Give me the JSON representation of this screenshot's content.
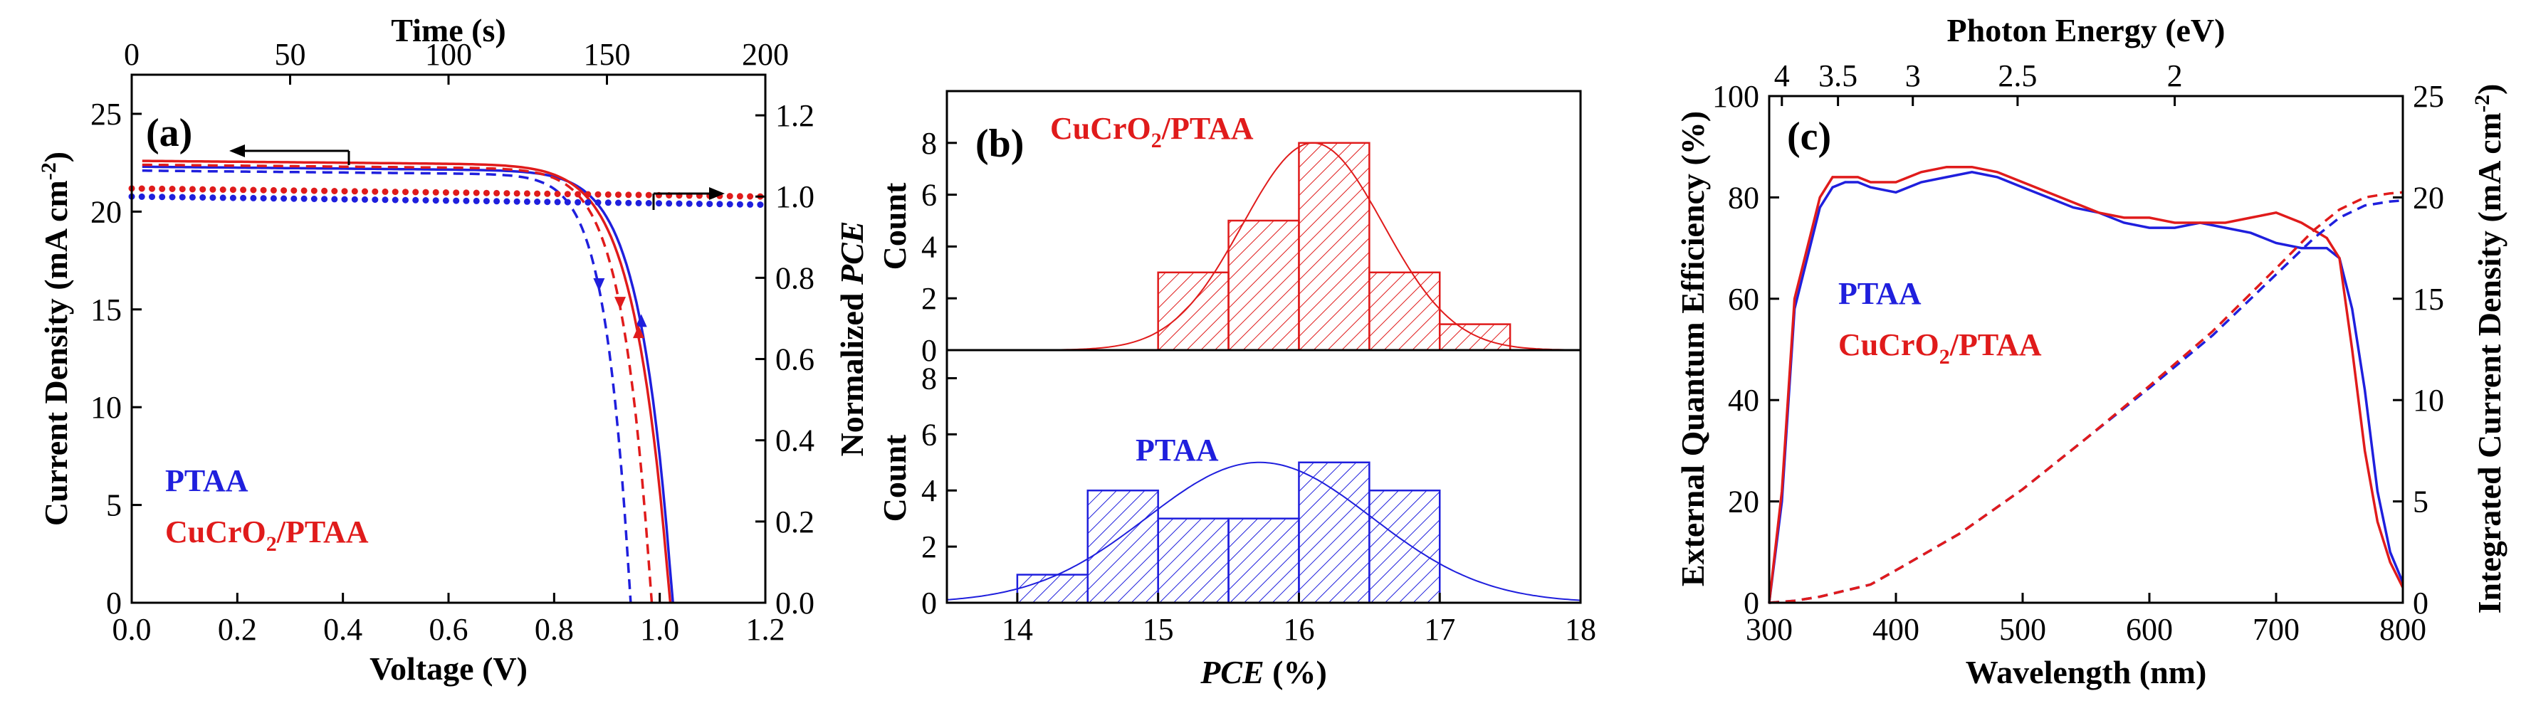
{
  "chart_data": [
    {
      "id": "a",
      "type": "line",
      "panel_label": "(a)",
      "xlabel": "Voltage (V)",
      "ylabel": "Current Density (mA cm",
      "ylabel_sup": "-2",
      "ylabel_close": ")",
      "x2label": "Time (s)",
      "y2label_prefix": "Normalized ",
      "y2label_italic": "PCE",
      "xlim": [
        0.0,
        1.2
      ],
      "ylim": [
        0,
        27
      ],
      "x2lim": [
        0,
        200
      ],
      "y2lim": [
        0.0,
        1.3
      ],
      "xticks": [
        "0.0",
        "0.2",
        "0.4",
        "0.6",
        "0.8",
        "1.0",
        "1.2"
      ],
      "yticks": [
        "0",
        "5",
        "10",
        "15",
        "20",
        "25"
      ],
      "x2ticks": [
        "0",
        "50",
        "100",
        "150",
        "200"
      ],
      "y2ticks": [
        "0.0",
        "0.2",
        "0.4",
        "0.6",
        "0.8",
        "1.0",
        "1.2"
      ],
      "legend": [
        {
          "label": "PTAA",
          "color": "#1f1fdd"
        },
        {
          "label_main": "CuCrO",
          "label_sub": "2",
          "label_tail": "/PTAA",
          "color": "#e01b1b"
        }
      ],
      "series": [
        {
          "name": "PTAA reverse",
          "color": "#1f1fdd",
          "style": "solid",
          "jsc": 22.3,
          "voc": 1.025,
          "n": 2.15
        },
        {
          "name": "PTAA forward",
          "color": "#1f1fdd",
          "style": "dashed",
          "jsc": 22.1,
          "voc": 0.945,
          "n": 2.55
        },
        {
          "name": "CuCrO2/PTAA reverse",
          "color": "#e01b1b",
          "style": "solid",
          "jsc": 22.6,
          "voc": 1.02,
          "n": 1.95
        },
        {
          "name": "CuCrO2/PTAA forward",
          "color": "#e01b1b",
          "style": "dashed",
          "jsc": 22.4,
          "voc": 0.985,
          "n": 2.3
        }
      ],
      "stability": [
        {
          "name": "PTAA normalized PCE",
          "color": "#1f1fdd",
          "y": [
            1.0,
            0.98
          ]
        },
        {
          "name": "CuCrO2/PTAA normalized PCE",
          "color": "#e01b1b",
          "y": [
            1.02,
            1.0
          ]
        }
      ]
    },
    {
      "id": "b",
      "type": "bar",
      "panel_label": "(b)",
      "xlabel_italic": "PCE",
      "xlabel_tail": " (%)",
      "ylabel": "Count",
      "xlim": [
        13.5,
        18
      ],
      "xticks": [
        "14",
        "15",
        "16",
        "17",
        "18"
      ],
      "top": {
        "label_main": "CuCrO",
        "label_sub": "2",
        "label_tail": "/PTAA",
        "color": "#e01b1b",
        "bins": [
          15.0,
          15.5,
          16.0,
          16.5,
          17.0,
          17.5
        ],
        "values": [
          3,
          5,
          8,
          3,
          1
        ],
        "fit_mean": 16.1,
        "fit_sd": 0.5,
        "fit_peak": 8,
        "ylim": [
          0,
          10
        ],
        "yticks": [
          "0",
          "2",
          "4",
          "6",
          "8"
        ]
      },
      "bottom": {
        "label": "PTAA",
        "color": "#1f1fdd",
        "bins": [
          14.0,
          14.5,
          15.0,
          15.5,
          16.0,
          16.5,
          17.0
        ],
        "values": [
          1,
          4,
          3,
          3,
          5,
          4
        ],
        "fit_mean": 15.72,
        "fit_sd": 0.8,
        "fit_peak": 5,
        "ylim": [
          0,
          9
        ],
        "yticks": [
          "0",
          "2",
          "4",
          "6",
          "8"
        ]
      }
    },
    {
      "id": "c",
      "type": "line",
      "panel_label": "(c)",
      "xlabel": "Wavelength (nm)",
      "ylabel": "External Quantum Efficiency (%)",
      "y2label": "Integrated Current Density (mA cm",
      "y2label_sup": "-2",
      "y2label_close": ")",
      "x2label": "Photon Energy (eV)",
      "xlim": [
        300,
        800
      ],
      "ylim": [
        0,
        100
      ],
      "y2lim": [
        0,
        25
      ],
      "xticks": [
        "300",
        "400",
        "500",
        "600",
        "700",
        "800"
      ],
      "yticks": [
        "0",
        "20",
        "40",
        "60",
        "80",
        "100"
      ],
      "y2ticks": [
        "0",
        "5",
        "10",
        "15",
        "20",
        "25"
      ],
      "x2ticks": [
        {
          "label": "4",
          "ev": 4.0
        },
        {
          "label": "3.5",
          "ev": 3.5
        },
        {
          "label": "3",
          "ev": 3.0
        },
        {
          "label": "2.5",
          "ev": 2.5
        },
        {
          "label": "2",
          "ev": 2.0
        }
      ],
      "legend": [
        {
          "label": "PTAA",
          "color": "#1f1fdd"
        },
        {
          "label_main": "CuCrO",
          "label_sub": "2",
          "label_tail": "/PTAA",
          "color": "#e01b1b"
        }
      ],
      "eqe": [
        {
          "name": "PTAA EQE",
          "color": "#1f1fdd",
          "x": [
            300,
            310,
            320,
            330,
            340,
            350,
            360,
            370,
            380,
            400,
            420,
            440,
            460,
            480,
            500,
            520,
            540,
            560,
            580,
            600,
            620,
            640,
            660,
            680,
            700,
            720,
            740,
            750,
            760,
            770,
            780,
            790,
            800
          ],
          "y": [
            0,
            20,
            58,
            68,
            78,
            82,
            83,
            83,
            82,
            81,
            83,
            84,
            85,
            84,
            82,
            80,
            78,
            77,
            75,
            74,
            74,
            75,
            74,
            73,
            71,
            70,
            70,
            68,
            58,
            42,
            22,
            10,
            4
          ]
        },
        {
          "name": "CuCrO2/PTAA EQE",
          "color": "#e01b1b",
          "x": [
            300,
            310,
            320,
            330,
            340,
            350,
            360,
            370,
            380,
            400,
            420,
            440,
            460,
            480,
            500,
            520,
            540,
            560,
            580,
            600,
            620,
            640,
            660,
            680,
            700,
            720,
            740,
            750,
            760,
            770,
            780,
            790,
            800
          ],
          "y": [
            0,
            22,
            60,
            70,
            80,
            84,
            84,
            84,
            83,
            83,
            85,
            86,
            86,
            85,
            83,
            81,
            79,
            77,
            76,
            76,
            75,
            75,
            75,
            76,
            77,
            75,
            72,
            68,
            50,
            30,
            16,
            8,
            3
          ]
        }
      ],
      "integrated": [
        {
          "name": "PTAA integrated Jsc",
          "color": "#1f1fdd",
          "x": [
            300,
            320,
            340,
            360,
            380,
            400,
            450,
            500,
            550,
            600,
            650,
            700,
            730,
            750,
            770,
            790,
            800
          ],
          "y": [
            0,
            0.1,
            0.3,
            0.6,
            0.9,
            1.6,
            3.4,
            5.6,
            8.1,
            10.6,
            13.2,
            16.2,
            18.0,
            19.0,
            19.6,
            19.8,
            19.85
          ]
        },
        {
          "name": "CuCrO2/PTAA integrated Jsc",
          "color": "#e01b1b",
          "x": [
            300,
            320,
            340,
            360,
            380,
            400,
            450,
            500,
            550,
            600,
            650,
            700,
            730,
            750,
            770,
            790,
            800
          ],
          "y": [
            0,
            0.1,
            0.3,
            0.6,
            0.9,
            1.6,
            3.4,
            5.6,
            8.1,
            10.7,
            13.4,
            16.5,
            18.4,
            19.4,
            20.0,
            20.2,
            20.25
          ]
        }
      ]
    }
  ]
}
